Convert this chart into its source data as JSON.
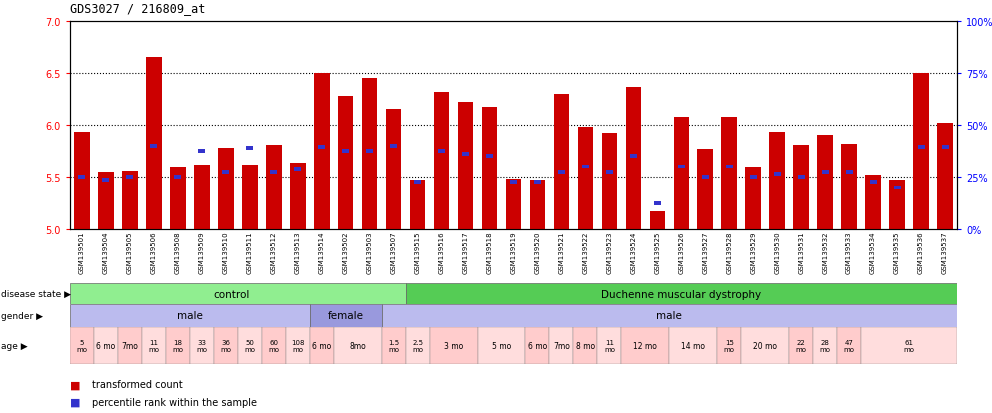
{
  "title": "GDS3027 / 216809_at",
  "samples": [
    "GSM139501",
    "GSM139504",
    "GSM139505",
    "GSM139506",
    "GSM139508",
    "GSM139509",
    "GSM139510",
    "GSM139511",
    "GSM139512",
    "GSM139513",
    "GSM139514",
    "GSM139502",
    "GSM139503",
    "GSM139507",
    "GSM139515",
    "GSM139516",
    "GSM139517",
    "GSM139518",
    "GSM139519",
    "GSM139520",
    "GSM139521",
    "GSM139522",
    "GSM139523",
    "GSM139524",
    "GSM139525",
    "GSM139526",
    "GSM139527",
    "GSM139528",
    "GSM139529",
    "GSM139530",
    "GSM139531",
    "GSM139532",
    "GSM139533",
    "GSM139534",
    "GSM139535",
    "GSM139536",
    "GSM139537"
  ],
  "bar_heights": [
    5.93,
    5.55,
    5.56,
    6.65,
    5.6,
    5.62,
    5.78,
    5.62,
    5.81,
    5.63,
    6.5,
    6.28,
    6.45,
    6.15,
    5.47,
    6.32,
    6.22,
    6.17,
    5.48,
    5.47,
    6.3,
    5.98,
    5.92,
    6.37,
    5.17,
    6.08,
    5.77,
    6.08,
    5.6,
    5.93,
    5.81,
    5.9,
    5.82,
    5.52,
    5.47,
    6.5,
    6.02
  ],
  "percentile_ranks": [
    5.5,
    5.47,
    5.5,
    5.8,
    5.5,
    5.75,
    5.55,
    5.78,
    5.55,
    5.58,
    5.79,
    5.75,
    5.75,
    5.8,
    5.45,
    5.75,
    5.72,
    5.7,
    5.45,
    5.45,
    5.55,
    5.6,
    5.55,
    5.7,
    5.25,
    5.6,
    5.5,
    5.6,
    5.5,
    5.53,
    5.5,
    5.55,
    5.55,
    5.45,
    5.4,
    5.79,
    5.79
  ],
  "ylim": [
    5.0,
    7.0
  ],
  "yticks": [
    5.0,
    5.5,
    6.0,
    6.5,
    7.0
  ],
  "right_yticks_pct": [
    0,
    25,
    50,
    75,
    100
  ],
  "right_ytick_labels": [
    "0%",
    "25%",
    "50%",
    "75%",
    "100%"
  ],
  "gridlines": [
    5.5,
    6.0,
    6.5
  ],
  "bar_color": "#CC0000",
  "percentile_color": "#3333CC",
  "bar_width": 0.65,
  "n_bars": 37,
  "control_count": 14,
  "age_data": [
    [
      -0.5,
      0.5,
      "5\nmo",
      "#FFCCCC"
    ],
    [
      0.5,
      1.5,
      "6 mo",
      "#FFDDDD"
    ],
    [
      1.5,
      2.5,
      "7mo",
      "#FFCCCC"
    ],
    [
      2.5,
      3.5,
      "11\nmo",
      "#FFDDDD"
    ],
    [
      3.5,
      4.5,
      "18\nmo",
      "#FFCCCC"
    ],
    [
      4.5,
      5.5,
      "33\nmo",
      "#FFDDDD"
    ],
    [
      5.5,
      6.5,
      "36\nmo",
      "#FFCCCC"
    ],
    [
      6.5,
      7.5,
      "50\nmo",
      "#FFDDDD"
    ],
    [
      7.5,
      8.5,
      "60\nmo",
      "#FFCCCC"
    ],
    [
      8.5,
      9.5,
      "108\nmo",
      "#FFDDDD"
    ],
    [
      9.5,
      10.5,
      "6 mo",
      "#FFCCCC"
    ],
    [
      10.5,
      12.5,
      "8mo",
      "#FFDDDD"
    ],
    [
      12.5,
      13.5,
      "1.5\nmo",
      "#FFCCCC"
    ],
    [
      13.5,
      14.5,
      "2.5\nmo",
      "#FFDDDD"
    ],
    [
      14.5,
      16.5,
      "3 mo",
      "#FFCCCC"
    ],
    [
      16.5,
      18.5,
      "5 mo",
      "#FFDDDD"
    ],
    [
      18.5,
      19.5,
      "6 mo",
      "#FFCCCC"
    ],
    [
      19.5,
      20.5,
      "7mo",
      "#FFDDDD"
    ],
    [
      20.5,
      21.5,
      "8 mo",
      "#FFCCCC"
    ],
    [
      21.5,
      22.5,
      "11\nmo",
      "#FFDDDD"
    ],
    [
      22.5,
      24.5,
      "12 mo",
      "#FFCCCC"
    ],
    [
      24.5,
      26.5,
      "14 mo",
      "#FFDDDD"
    ],
    [
      26.5,
      27.5,
      "15\nmo",
      "#FFCCCC"
    ],
    [
      27.5,
      29.5,
      "20 mo",
      "#FFDDDD"
    ],
    [
      29.5,
      30.5,
      "22\nmo",
      "#FFCCCC"
    ],
    [
      30.5,
      31.5,
      "28\nmo",
      "#FFDDDD"
    ],
    [
      31.5,
      32.5,
      "47\nmo",
      "#FFCCCC"
    ],
    [
      32.5,
      36.5,
      "61\nmo",
      "#FFDDDD"
    ]
  ]
}
